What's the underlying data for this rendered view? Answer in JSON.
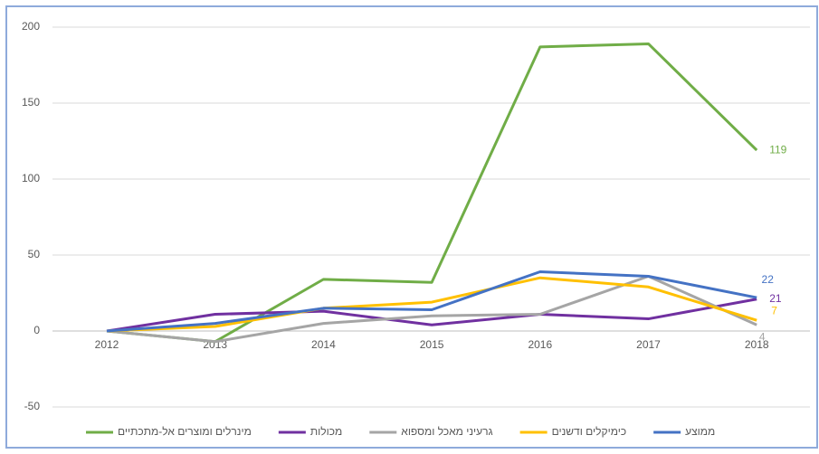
{
  "chart_data": {
    "type": "line",
    "x": [
      "2012",
      "2013",
      "2014",
      "2015",
      "2016",
      "2017",
      "2018"
    ],
    "series": [
      {
        "name": "מינרלים ומוצרים אל-מתכתיים",
        "color": "#70ad47",
        "values": [
          0,
          -7,
          34,
          32,
          187,
          189,
          119
        ]
      },
      {
        "name": "מכולות",
        "color": "#7030a0",
        "values": [
          0,
          11,
          13,
          4,
          11,
          8,
          21
        ]
      },
      {
        "name": "גרעיני מאכל ומספוא",
        "color": "#a5a5a5",
        "values": [
          0,
          -7,
          5,
          10,
          11,
          36,
          4
        ]
      },
      {
        "name": "כימיקלים ודשנים",
        "color": "#ffc000",
        "values": [
          0,
          3,
          15,
          19,
          35,
          29,
          7
        ]
      },
      {
        "name": "ממוצע",
        "color": "#4472c4",
        "values": [
          0,
          5,
          15,
          14,
          39,
          36,
          22
        ]
      }
    ],
    "ylim": [
      -60,
      200
    ],
    "yticks": [
      -50,
      0,
      50,
      100,
      150,
      200
    ],
    "grid": true,
    "legend": "bottom"
  }
}
